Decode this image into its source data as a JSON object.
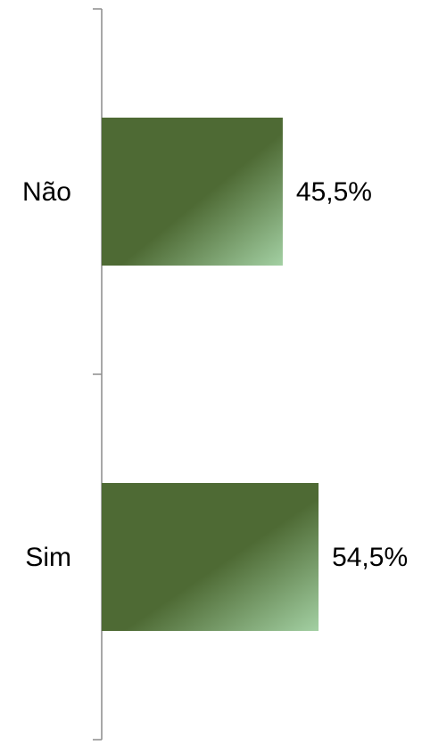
{
  "chart_data": {
    "type": "bar",
    "orientation": "horizontal",
    "categories": [
      "Não",
      "Sim"
    ],
    "values": [
      45.5,
      54.5
    ],
    "value_labels": [
      "45,5%",
      "54,5%"
    ],
    "color": "#4e6a34"
  }
}
